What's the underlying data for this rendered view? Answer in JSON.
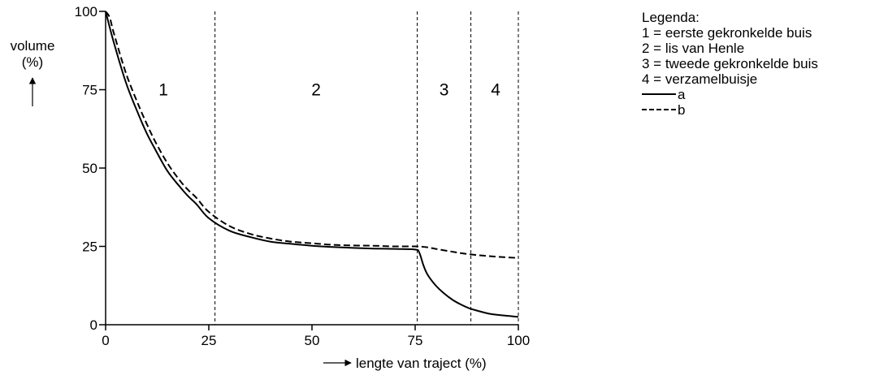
{
  "chart_data": {
    "type": "line",
    "title": "",
    "xlabel": "lengte van traject (%)",
    "ylabel": "volume (%)",
    "xlim": [
      0,
      100
    ],
    "ylim": [
      0,
      100
    ],
    "x_ticks": [
      "0",
      "25",
      "50",
      "75",
      "100"
    ],
    "y_ticks": [
      "0",
      "25",
      "50",
      "75",
      "100"
    ],
    "grid": false,
    "legend_position": "right",
    "region_boundaries": [
      26.5,
      75.5,
      88.5,
      100
    ],
    "regions": [
      {
        "label": "1",
        "x_center": 14
      },
      {
        "label": "2",
        "x_center": 51
      },
      {
        "label": "3",
        "x_center": 82
      },
      {
        "label": "4",
        "x_center": 94.5
      }
    ],
    "series": [
      {
        "name": "a",
        "style": "solid",
        "x": [
          0,
          2,
          5,
          8,
          10,
          12,
          15,
          18,
          20,
          22,
          25,
          30,
          35,
          40,
          45,
          50,
          55,
          60,
          65,
          70,
          75,
          76,
          77,
          78,
          80,
          82,
          84,
          86,
          88,
          90,
          93,
          96,
          100
        ],
        "y": [
          100,
          90,
          77,
          67,
          61,
          56,
          49,
          44,
          41,
          38.5,
          34,
          30,
          28,
          26.5,
          25.8,
          25.2,
          24.8,
          24.5,
          24.3,
          24.2,
          24,
          23,
          19,
          16,
          12.5,
          10,
          8,
          6.5,
          5.3,
          4.5,
          3.5,
          3,
          2.5
        ]
      },
      {
        "name": "b",
        "style": "dashed",
        "x": [
          0,
          1,
          2,
          5,
          8,
          10,
          12,
          15,
          18,
          20,
          22,
          25,
          30,
          35,
          40,
          45,
          50,
          55,
          60,
          65,
          70,
          75,
          78,
          80,
          84,
          88,
          92,
          96,
          100
        ],
        "y": [
          100,
          98,
          93,
          80,
          70,
          64,
          58.5,
          51.5,
          46,
          43,
          40.5,
          36,
          31.5,
          29,
          27.5,
          26.5,
          26,
          25.5,
          25.3,
          25.2,
          25,
          25,
          24.7,
          24.2,
          23.3,
          22.5,
          22,
          21.6,
          21.3
        ]
      }
    ]
  },
  "legend": {
    "title": "Legenda:",
    "items": [
      "1 = eerste gekronkelde buis",
      "2 = lis van Henle",
      "3 = tweede gekronkelde buis",
      "4 = verzamelbuisje"
    ],
    "line_items": [
      {
        "label": "a",
        "style": "solid"
      },
      {
        "label": "b",
        "style": "dashed"
      }
    ]
  },
  "axis": {
    "ylabel_line1": "volume",
    "ylabel_line2": "(%)",
    "xlabel": "lengte van traject (%)"
  }
}
